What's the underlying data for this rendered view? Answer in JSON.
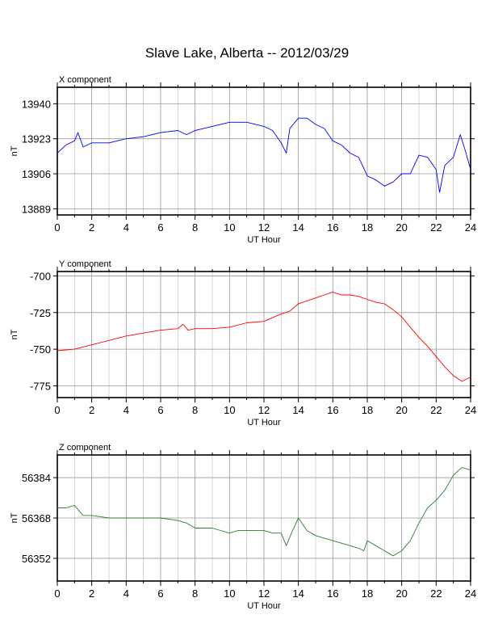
{
  "title": "Slave Lake, Alberta -- 2012/03/29",
  "chart_data": [
    {
      "type": "line",
      "panel_label": "X component",
      "ylabel": "nT",
      "xlabel": "UT Hour",
      "xlim": [
        0,
        24
      ],
      "ylim": [
        13886,
        13948
      ],
      "xticks": [
        0,
        2,
        4,
        6,
        8,
        10,
        12,
        14,
        16,
        18,
        20,
        22,
        24
      ],
      "yticks": [
        13889,
        13906,
        13923,
        13940
      ],
      "grid": true,
      "color": "#0000ff",
      "series": [
        {
          "x": [
            0,
            0.5,
            1,
            1.2,
            1.5,
            2,
            3,
            4,
            5,
            6,
            7,
            7.5,
            8,
            9,
            10,
            10.5,
            11,
            12,
            12.5,
            13,
            13.3,
            13.5,
            14,
            14.5,
            15,
            15.5,
            16,
            16.5,
            17,
            17.5,
            18,
            18.5,
            19,
            19.5,
            20,
            20.5,
            21,
            21.5,
            22,
            22.2,
            22.5,
            23,
            23.4,
            23.7,
            24
          ],
          "y": [
            13916,
            13920,
            13922,
            13926,
            13919,
            13921,
            13921,
            13923,
            13924,
            13926,
            13927,
            13925,
            13927,
            13929,
            13931,
            13931,
            13931,
            13929,
            13927,
            13921,
            13916,
            13928,
            13933,
            13933,
            13930,
            13928,
            13922,
            13920,
            13916,
            13914,
            13905,
            13903,
            13900,
            13902,
            13906,
            13906,
            13915,
            13914,
            13908,
            13897,
            13910,
            13914,
            13925,
            13917,
            13908
          ]
        }
      ]
    },
    {
      "type": "line",
      "panel_label": "Y component",
      "ylabel": "nT",
      "xlabel": "UT Hour",
      "xlim": [
        0,
        24
      ],
      "ylim": [
        -783,
        -697
      ],
      "xticks": [
        0,
        2,
        4,
        6,
        8,
        10,
        12,
        14,
        16,
        18,
        20,
        22,
        24
      ],
      "yticks": [
        -700,
        -725,
        -750,
        -775
      ],
      "grid": true,
      "color": "#ff0000",
      "series": [
        {
          "x": [
            0,
            1,
            2,
            3,
            4,
            5,
            6,
            7,
            7.3,
            7.6,
            8,
            9,
            10,
            11,
            12,
            13,
            13.5,
            14,
            14.5,
            15,
            15.5,
            16,
            16.5,
            17,
            17.5,
            18,
            18.5,
            19,
            19.5,
            20,
            20.5,
            21,
            21.5,
            22,
            22.5,
            23,
            23.5,
            24
          ],
          "y": [
            -751,
            -750,
            -747,
            -744,
            -741,
            -739,
            -737,
            -736,
            -733,
            -737,
            -736,
            -736,
            -735,
            -732,
            -731,
            -726,
            -724,
            -719,
            -717,
            -715,
            -713,
            -711,
            -713,
            -713,
            -714,
            -716,
            -718,
            -719,
            -723,
            -728,
            -735,
            -742,
            -748,
            -755,
            -762,
            -768,
            -772,
            -769
          ]
        }
      ]
    },
    {
      "type": "line",
      "panel_label": "Z component",
      "ylabel": "nT",
      "xlabel": "UT Hour",
      "xlim": [
        0,
        24
      ],
      "ylim": [
        56343,
        56393
      ],
      "xticks": [
        0,
        2,
        4,
        6,
        8,
        10,
        12,
        14,
        16,
        18,
        20,
        22,
        24
      ],
      "yticks": [
        56352,
        56368,
        56384
      ],
      "grid": true,
      "color": "#2e7d32",
      "series": [
        {
          "x": [
            0,
            0.5,
            1,
            1.5,
            2,
            3,
            4,
            5,
            6,
            7,
            7.5,
            8,
            9,
            10,
            10.5,
            11,
            12,
            12.5,
            13,
            13.3,
            13.6,
            14,
            14.5,
            15,
            16,
            16.5,
            17,
            17.5,
            17.8,
            18,
            18.5,
            19,
            19.5,
            20,
            20.5,
            21,
            21.5,
            22,
            22.5,
            23,
            23.5,
            24
          ],
          "y": [
            56372,
            56372,
            56373,
            56369,
            56369,
            56368,
            56368,
            56368,
            56368,
            56367,
            56366,
            56364,
            56364,
            56362,
            56363,
            56363,
            56363,
            56362,
            56362,
            56357,
            56362,
            56368,
            56363,
            56361,
            56359,
            56358,
            56357,
            56356,
            56355,
            56359,
            56357,
            56355,
            56353,
            56355,
            56359,
            56366,
            56372,
            56375,
            56379,
            56385,
            56388,
            56387
          ]
        }
      ]
    }
  ]
}
